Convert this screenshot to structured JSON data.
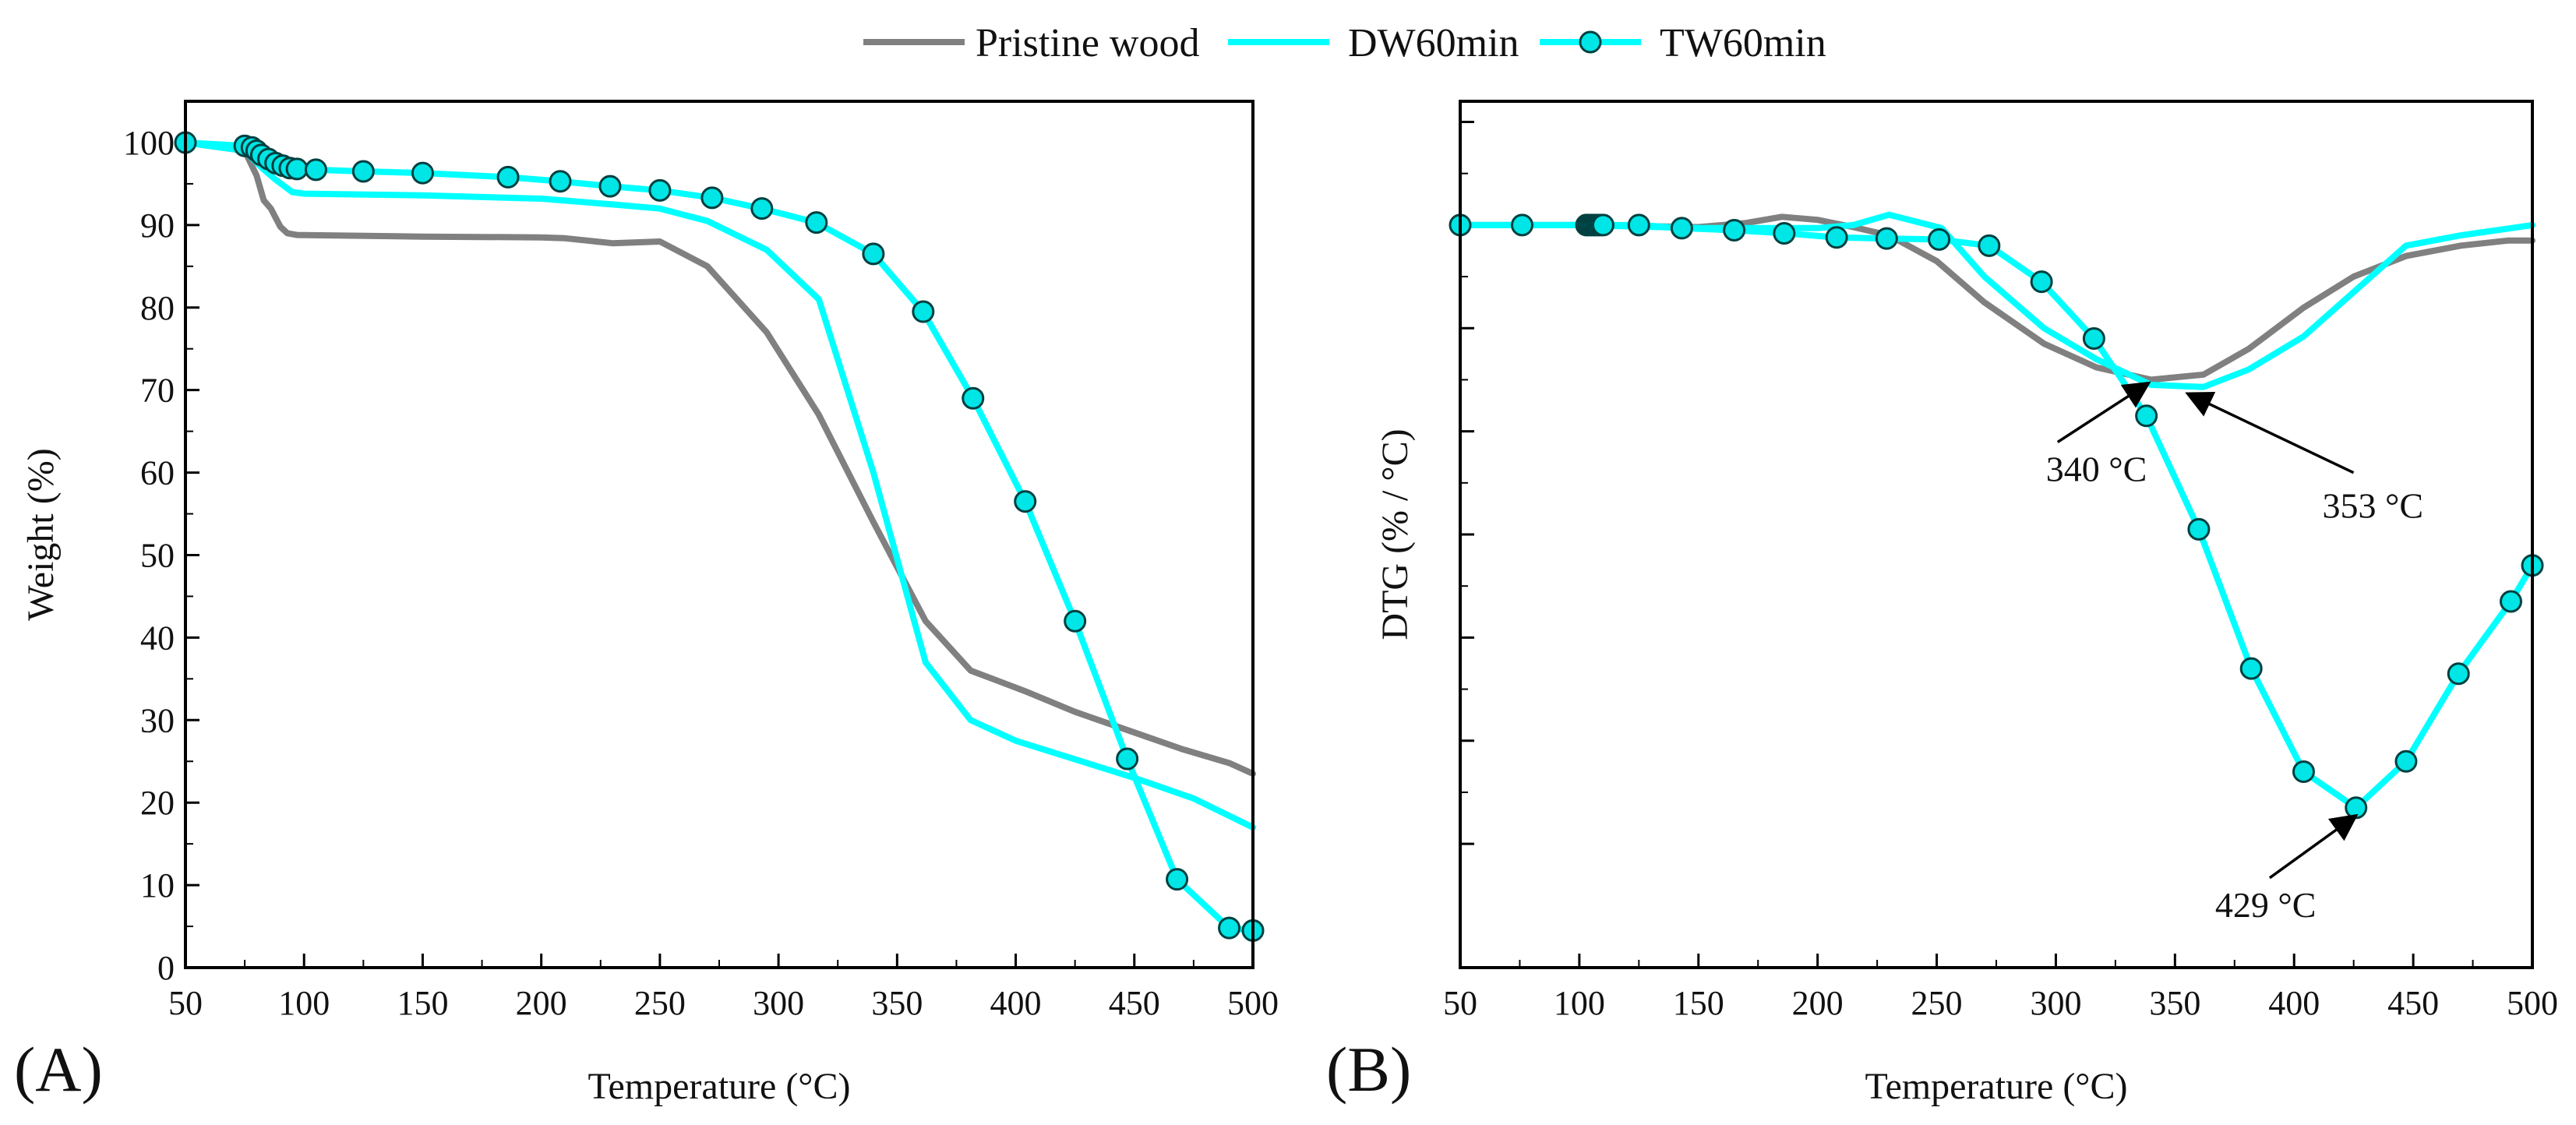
{
  "legend": {
    "entries": [
      "Pristine wood",
      "DW60min",
      "TW60min"
    ]
  },
  "colors": {
    "pristine": "#808080",
    "dw": "#00ffff",
    "tw": "#00ffff",
    "marker_fill": "#00e5e5",
    "marker_stroke": "#004040",
    "axis": "#000000"
  },
  "chart_data": [
    {
      "panel": "(A)",
      "type": "line",
      "title": "",
      "xlabel": "Temperature (°C)",
      "ylabel": "Weight (%)",
      "xlim": [
        50,
        500
      ],
      "ylim": [
        0,
        105
      ],
      "xticks": [
        50,
        100,
        150,
        200,
        250,
        300,
        350,
        400,
        450,
        500
      ],
      "yticks": [
        0,
        10,
        20,
        30,
        40,
        50,
        60,
        70,
        80,
        90,
        100
      ],
      "series": [
        {
          "name": "Pristine wood",
          "markers": false,
          "x": [
            50,
            75,
            80,
            83,
            86,
            90,
            93,
            97,
            150,
            200,
            210,
            230,
            250,
            270,
            295,
            317,
            340,
            362,
            381,
            404,
            425,
            450,
            470,
            490,
            500
          ],
          "y": [
            100,
            99,
            96,
            93,
            92,
            89.8,
            89,
            88.8,
            88.6,
            88.5,
            88.4,
            87.8,
            88,
            85,
            77,
            67,
            54,
            42,
            36,
            33.5,
            31,
            28.5,
            26.5,
            24.8,
            23.5
          ]
        },
        {
          "name": "DW60min",
          "markers": false,
          "x": [
            50,
            75,
            82,
            88,
            95,
            100,
            150,
            200,
            230,
            250,
            270,
            295,
            317,
            340,
            362,
            381,
            400,
            450,
            475,
            500
          ],
          "y": [
            100,
            99,
            97,
            95.5,
            94,
            93.8,
            93.6,
            93.2,
            92.5,
            92,
            90.5,
            87,
            81,
            60,
            37,
            30,
            27.5,
            23,
            20.5,
            17
          ]
        },
        {
          "name": "TW60min",
          "markers": true,
          "x": [
            50,
            75,
            78,
            80,
            82,
            85,
            88,
            91,
            94,
            97,
            105,
            125,
            150,
            186,
            208,
            229,
            250,
            272,
            293,
            316,
            340,
            361,
            382,
            404,
            425,
            447,
            468,
            490,
            500
          ],
          "y": [
            100,
            99.6,
            99.4,
            99,
            98.5,
            98,
            97.5,
            97.2,
            96.9,
            96.8,
            96.7,
            96.5,
            96.3,
            95.8,
            95.3,
            94.7,
            94.2,
            93.3,
            92,
            90.3,
            86.5,
            79.5,
            69,
            56.5,
            42,
            25.3,
            10.7,
            4.8,
            4.5
          ]
        }
      ]
    },
    {
      "panel": "(B)",
      "type": "line",
      "title": "",
      "xlabel": "Temperature (°C)",
      "ylabel": "DTG (% / °C)",
      "xlim": [
        50,
        500
      ],
      "ylim": [
        -0.72,
        0.12
      ],
      "xticks": [
        50,
        100,
        150,
        200,
        250,
        300,
        350,
        400,
        450,
        500
      ],
      "yticks": [
        -0.6,
        -0.5,
        -0.4,
        -0.3,
        -0.2,
        -0.1,
        0,
        0.1
      ],
      "yticklabels_shown": false,
      "series": [
        {
          "name": "Pristine wood",
          "markers": false,
          "x": [
            50,
            100,
            150,
            170,
            185,
            200,
            215,
            230,
            250,
            270,
            295,
            317,
            340,
            362,
            381,
            404,
            425,
            447,
            470,
            490,
            500
          ],
          "y": [
            0,
            0,
            -0.002,
            0.002,
            0.008,
            0.005,
            -0.002,
            -0.01,
            -0.035,
            -0.075,
            -0.115,
            -0.138,
            -0.15,
            -0.145,
            -0.12,
            -0.08,
            -0.05,
            -0.03,
            -0.02,
            -0.015,
            -0.015
          ]
        },
        {
          "name": "DW60min",
          "markers": false,
          "x": [
            50,
            100,
            150,
            200,
            215,
            230,
            252,
            270,
            295,
            317,
            340,
            362,
            381,
            404,
            425,
            447,
            470,
            500
          ],
          "y": [
            0,
            0,
            -0.003,
            -0.003,
            0,
            0.01,
            -0.003,
            -0.05,
            -0.1,
            -0.13,
            -0.155,
            -0.157,
            -0.14,
            -0.108,
            -0.065,
            -0.02,
            -0.01,
            0
          ]
        },
        {
          "name": "TW60min",
          "markers": true,
          "x": [
            50,
            76,
            103,
            104,
            105,
            106,
            107,
            108,
            109,
            110,
            125,
            143,
            165,
            186,
            208,
            229,
            251,
            272,
            294,
            316,
            338,
            360,
            382,
            404,
            426,
            447,
            469,
            491,
            500
          ],
          "y": [
            0,
            0,
            0,
            0,
            0,
            0,
            0,
            0,
            0,
            0,
            0,
            -0.003,
            -0.005,
            -0.008,
            -0.012,
            -0.013,
            -0.014,
            -0.02,
            -0.055,
            -0.11,
            -0.185,
            -0.295,
            -0.43,
            -0.53,
            -0.565,
            -0.52,
            -0.435,
            -0.365,
            -0.33
          ]
        }
      ],
      "annotations": [
        {
          "text": "340 °C",
          "x": 340,
          "y": -0.15
        },
        {
          "text": "353 °C",
          "x": 353,
          "y": -0.157
        },
        {
          "text": "429 °C",
          "x": 429,
          "y": -0.565
        }
      ]
    }
  ]
}
